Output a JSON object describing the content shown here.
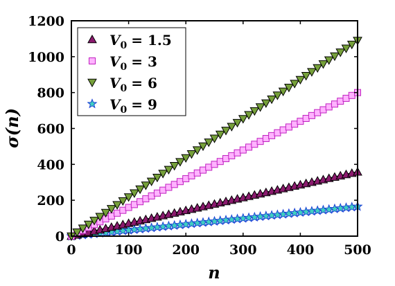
{
  "chart_data": {
    "type": "scatter",
    "xlabel": "n",
    "ylabel": "σ(n)",
    "xlim": [
      0,
      500
    ],
    "ylim": [
      0,
      1200
    ],
    "xticks": [
      0,
      100,
      200,
      300,
      400,
      500
    ],
    "yticks": [
      0,
      200,
      400,
      600,
      800,
      1000,
      1200
    ],
    "grid": false,
    "legend_position": "top-left",
    "x_start": 0,
    "x_end": 500,
    "x_step": 10,
    "series": [
      {
        "name": "V0 = 1.5",
        "label_base": "V",
        "label_sub": "0",
        "label_value": "= 1.5",
        "marker": "triangle-up",
        "fill": "#8b1a6e",
        "stroke": "#000000",
        "y_start": 0,
        "y_end": 358,
        "fit_line": "#000000"
      },
      {
        "name": "V0 = 3",
        "label_base": "V",
        "label_sub": "0",
        "label_value": "= 3",
        "marker": "square",
        "fill": "#ffb3ff",
        "stroke": "#c020c0",
        "y_start": 0,
        "y_end": 800,
        "fit_line": "#c020c0"
      },
      {
        "name": "V0 = 6",
        "label_base": "V",
        "label_sub": "0",
        "label_value": "= 6",
        "marker": "triangle-down",
        "fill": "#76a03a",
        "stroke": "#000000",
        "y_start": 0,
        "y_end": 1090,
        "fit_line": "#000000"
      },
      {
        "name": "V0 = 9",
        "label_base": "V",
        "label_sub": "0",
        "label_value": "= 9",
        "marker": "star",
        "fill": "#40d0c0",
        "stroke": "#1a3fd6",
        "y_start": 0,
        "y_end": 165,
        "fit_line": "#1a3fd6"
      }
    ]
  }
}
